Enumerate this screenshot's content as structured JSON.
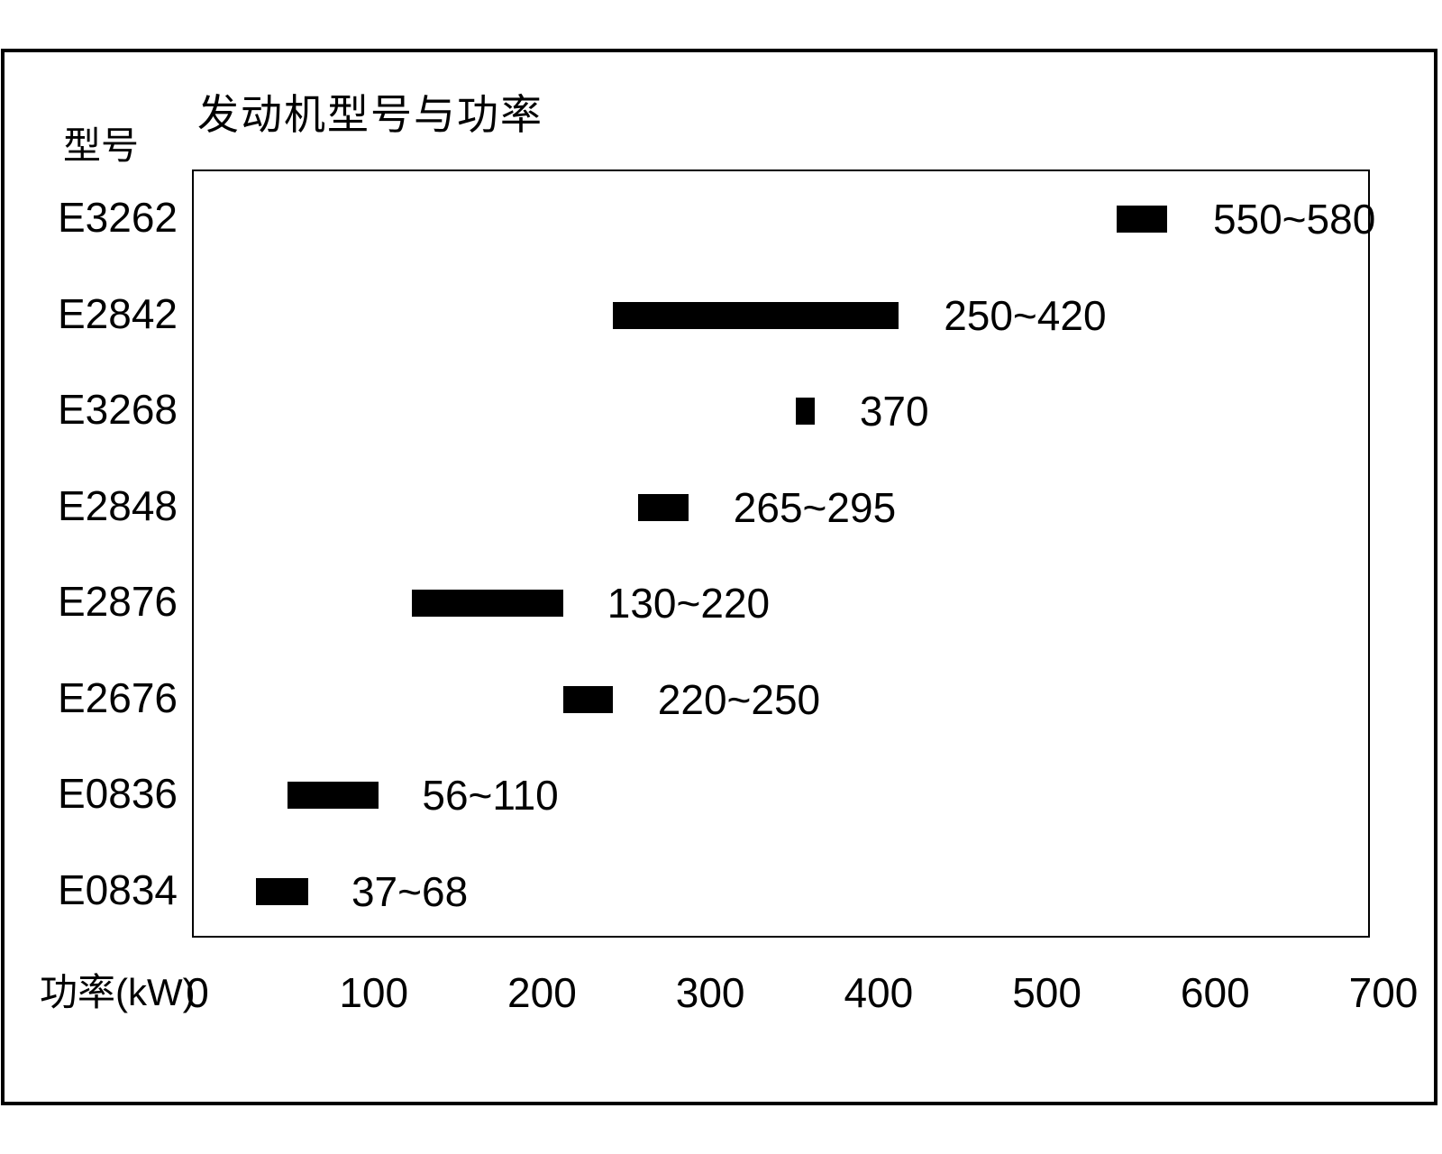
{
  "chart_data": {
    "type": "bar",
    "orientation": "horizontal-range",
    "title": "发动机型号与功率",
    "ylabel": "型号",
    "xlabel": "功率(kW)",
    "xlim": [
      0,
      700
    ],
    "xticks": [
      0,
      100,
      200,
      300,
      400,
      500,
      600,
      700
    ],
    "grid": false,
    "bar_color": "#000000",
    "rows": [
      {
        "model": "E3262",
        "min": 550,
        "max": 580,
        "label": "550~580"
      },
      {
        "model": "E2842",
        "min": 250,
        "max": 420,
        "label": "250~420"
      },
      {
        "model": "E3268",
        "value": 370,
        "min": 370,
        "max": 370,
        "bar_min": 359,
        "bar_max": 370,
        "label": "370"
      },
      {
        "model": "E2848",
        "min": 265,
        "max": 295,
        "label": "265~295"
      },
      {
        "model": "E2876",
        "min": 130,
        "max": 220,
        "label": "130~220"
      },
      {
        "model": "E2676",
        "min": 220,
        "max": 250,
        "label": "220~250"
      },
      {
        "model": "E0836",
        "min": 56,
        "max": 110,
        "label": "56~110"
      },
      {
        "model": "E0834",
        "min": 37,
        "max": 68,
        "label": "37~68"
      }
    ]
  }
}
